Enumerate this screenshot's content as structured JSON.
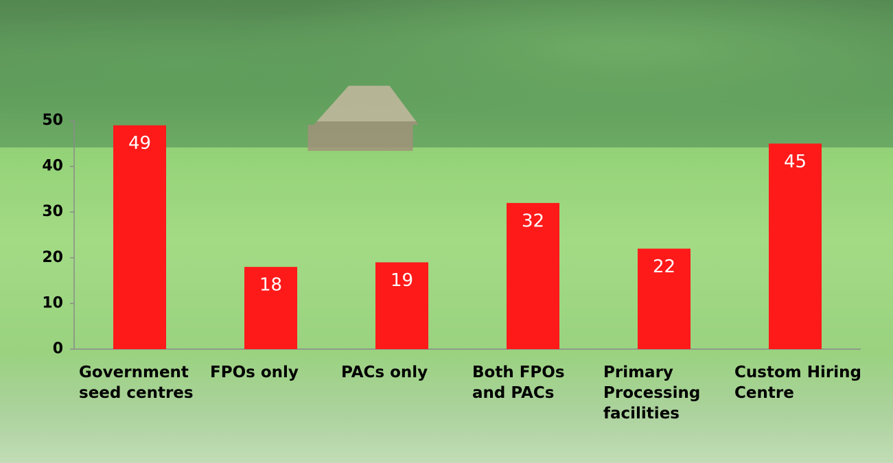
{
  "chart_data": {
    "type": "bar",
    "categories": [
      "Government seed centres",
      "FPOs only",
      "PACs only",
      "Both FPOs and PACs",
      "Primary Processing facilities",
      "Custom Hiring Centre"
    ],
    "values": [
      49,
      18,
      19,
      32,
      22,
      45
    ],
    "color": "#ff1a1a",
    "ylim": [
      0,
      50
    ],
    "yticks": [
      0,
      10,
      20,
      30,
      40,
      50
    ],
    "grid": false
  }
}
